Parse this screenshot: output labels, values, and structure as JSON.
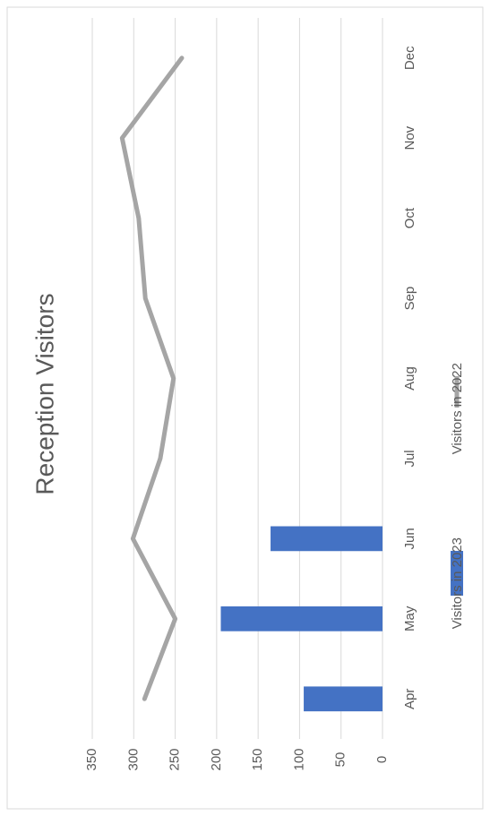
{
  "chart_data": {
    "type": "bar-line",
    "title": "Reception Visitors",
    "categories": [
      "Apr",
      "May",
      "Jun",
      "Jul",
      "Aug",
      "Sep",
      "Oct",
      "Nov",
      "Dec"
    ],
    "series": [
      {
        "name": "Visitors in 2023",
        "type": "bar",
        "color": "#4472c4",
        "values": [
          95,
          195,
          135,
          null,
          null,
          null,
          null,
          null,
          null
        ]
      },
      {
        "name": "Visitors in 2022",
        "type": "line",
        "color": "#a5a5a5",
        "values": [
          287,
          250,
          301,
          268,
          252,
          286,
          294,
          314,
          242
        ]
      }
    ],
    "ylim": [
      0,
      350
    ],
    "yticks": [
      0,
      50,
      100,
      150,
      200,
      250,
      300,
      350
    ],
    "grid": true
  }
}
